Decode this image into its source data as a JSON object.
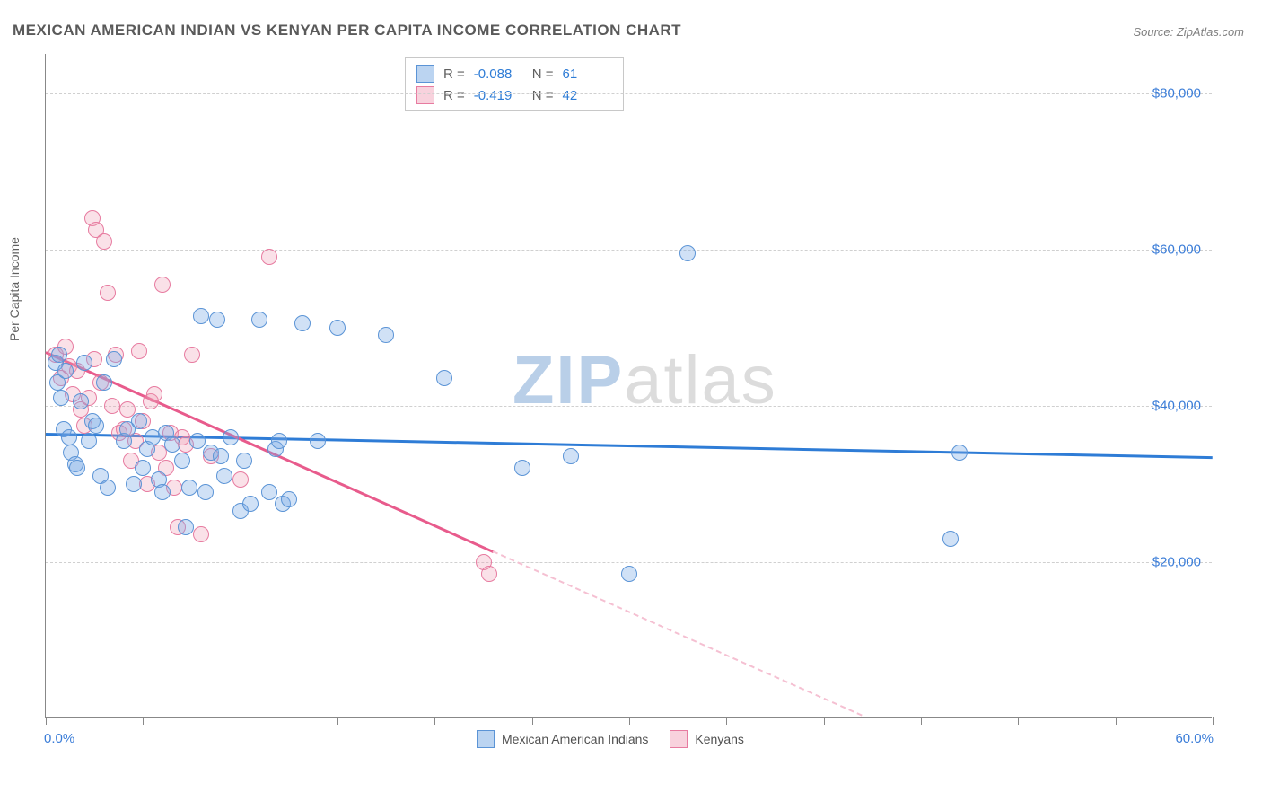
{
  "title": "MEXICAN AMERICAN INDIAN VS KENYAN PER CAPITA INCOME CORRELATION CHART",
  "source": "Source: ZipAtlas.com",
  "watermark": {
    "part1": "ZIP",
    "part2": "atlas"
  },
  "chart": {
    "type": "scatter",
    "ylabel": "Per Capita Income",
    "xlim": [
      0,
      60
    ],
    "ylim": [
      0,
      85000
    ],
    "x_tick_labels": {
      "min": "0.0%",
      "max": "60.0%"
    },
    "x_tick_positions": [
      0,
      5,
      10,
      15,
      20,
      25,
      30,
      35,
      40,
      45,
      50,
      55,
      60
    ],
    "y_ticks": [
      {
        "value": 20000,
        "label": "$20,000"
      },
      {
        "value": 40000,
        "label": "$40,000"
      },
      {
        "value": 60000,
        "label": "$60,000"
      },
      {
        "value": 80000,
        "label": "$80,000"
      }
    ],
    "background_color": "#ffffff",
    "grid_color": "#d0d0d0",
    "axis_color": "#888888",
    "series": [
      {
        "name": "Mexican American Indians",
        "color_fill": "rgba(120,170,228,0.35)",
        "color_stroke": "#5b94d6",
        "trend_color": "#2e7cd6",
        "R": "-0.088",
        "N": "61",
        "trend": {
          "x1": 0,
          "y1": 36500,
          "x2": 60,
          "y2": 33500
        },
        "points": [
          [
            0.5,
            45500
          ],
          [
            0.6,
            43000
          ],
          [
            0.7,
            46500
          ],
          [
            0.8,
            41000
          ],
          [
            0.9,
            37000
          ],
          [
            1.0,
            44500
          ],
          [
            1.2,
            36000
          ],
          [
            1.3,
            34000
          ],
          [
            1.5,
            32500
          ],
          [
            1.6,
            32000
          ],
          [
            1.8,
            40500
          ],
          [
            2.0,
            45500
          ],
          [
            2.2,
            35500
          ],
          [
            2.4,
            38000
          ],
          [
            2.6,
            37500
          ],
          [
            2.8,
            31000
          ],
          [
            3.0,
            43000
          ],
          [
            3.2,
            29500
          ],
          [
            3.5,
            46000
          ],
          [
            4.0,
            35500
          ],
          [
            4.2,
            37000
          ],
          [
            4.5,
            30000
          ],
          [
            4.8,
            38000
          ],
          [
            5.0,
            32000
          ],
          [
            5.2,
            34500
          ],
          [
            5.5,
            36000
          ],
          [
            5.8,
            30500
          ],
          [
            6.0,
            29000
          ],
          [
            6.2,
            36500
          ],
          [
            6.5,
            35000
          ],
          [
            7.0,
            33000
          ],
          [
            7.2,
            24500
          ],
          [
            7.4,
            29500
          ],
          [
            7.8,
            35500
          ],
          [
            8.0,
            51500
          ],
          [
            8.2,
            29000
          ],
          [
            8.5,
            34000
          ],
          [
            8.8,
            51000
          ],
          [
            9.0,
            33500
          ],
          [
            9.2,
            31000
          ],
          [
            9.5,
            36000
          ],
          [
            10.0,
            26500
          ],
          [
            10.2,
            33000
          ],
          [
            10.5,
            27500
          ],
          [
            11.0,
            51000
          ],
          [
            11.5,
            29000
          ],
          [
            11.8,
            34500
          ],
          [
            12.0,
            35500
          ],
          [
            12.2,
            27500
          ],
          [
            12.5,
            28000
          ],
          [
            13.2,
            50500
          ],
          [
            14.0,
            35500
          ],
          [
            15.0,
            50000
          ],
          [
            17.5,
            49000
          ],
          [
            20.5,
            43500
          ],
          [
            24.5,
            32000
          ],
          [
            27.0,
            33500
          ],
          [
            30.0,
            18500
          ],
          [
            33.0,
            59500
          ],
          [
            46.5,
            23000
          ],
          [
            47.0,
            34000
          ]
        ]
      },
      {
        "name": "Kenyans",
        "color_fill": "rgba(240,155,180,0.30)",
        "color_stroke": "#e77ba0",
        "trend_color": "#e85b8c",
        "trend_dash_color": "#f5c0d2",
        "R": "-0.419",
        "N": "42",
        "trend": {
          "x1": 0,
          "y1": 47000,
          "x2": 23,
          "y2": 21500
        },
        "trend_extend": {
          "x1": 23,
          "y1": 21500,
          "x2": 42,
          "y2": 500
        },
        "points": [
          [
            0.5,
            46500
          ],
          [
            0.8,
            43500
          ],
          [
            1.0,
            47500
          ],
          [
            1.2,
            45000
          ],
          [
            1.4,
            41500
          ],
          [
            1.6,
            44500
          ],
          [
            1.8,
            39500
          ],
          [
            2.0,
            37500
          ],
          [
            2.2,
            41000
          ],
          [
            2.4,
            64000
          ],
          [
            2.5,
            46000
          ],
          [
            2.6,
            62500
          ],
          [
            2.8,
            43000
          ],
          [
            3.0,
            61000
          ],
          [
            3.2,
            54500
          ],
          [
            3.4,
            40000
          ],
          [
            3.6,
            46500
          ],
          [
            3.8,
            36500
          ],
          [
            4.0,
            37000
          ],
          [
            4.2,
            39500
          ],
          [
            4.4,
            33000
          ],
          [
            4.6,
            35500
          ],
          [
            4.8,
            47000
          ],
          [
            5.0,
            38000
          ],
          [
            5.2,
            30000
          ],
          [
            5.4,
            40500
          ],
          [
            5.6,
            41500
          ],
          [
            5.8,
            34000
          ],
          [
            6.0,
            55500
          ],
          [
            6.2,
            32000
          ],
          [
            6.4,
            36500
          ],
          [
            6.6,
            29500
          ],
          [
            6.8,
            24500
          ],
          [
            7.0,
            36000
          ],
          [
            7.2,
            35000
          ],
          [
            7.5,
            46500
          ],
          [
            8.0,
            23500
          ],
          [
            8.5,
            33500
          ],
          [
            10.0,
            30500
          ],
          [
            11.5,
            59000
          ],
          [
            22.5,
            20000
          ],
          [
            22.8,
            18500
          ]
        ]
      }
    ],
    "legend": [
      {
        "swatch": "blue",
        "label": "Mexican American Indians"
      },
      {
        "swatch": "pink",
        "label": "Kenyans"
      }
    ]
  }
}
